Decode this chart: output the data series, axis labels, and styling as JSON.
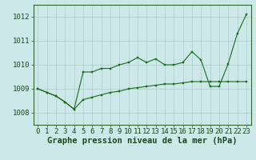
{
  "x": [
    0,
    1,
    2,
    3,
    4,
    5,
    6,
    7,
    8,
    9,
    10,
    11,
    12,
    13,
    14,
    15,
    16,
    17,
    18,
    19,
    20,
    21,
    22,
    23
  ],
  "line1": [
    1009.0,
    1008.85,
    1008.7,
    1008.45,
    1008.15,
    1009.7,
    1009.7,
    1009.85,
    1009.85,
    1010.0,
    1010.1,
    1010.3,
    1010.1,
    1010.25,
    1010.0,
    1010.0,
    1010.1,
    1010.55,
    1010.2,
    1009.1,
    1009.1,
    1010.05,
    1011.3,
    1012.1
  ],
  "line2": [
    1009.0,
    1008.85,
    1008.7,
    1008.45,
    1008.15,
    1008.55,
    1008.65,
    1008.75,
    1008.85,
    1008.9,
    1009.0,
    1009.05,
    1009.1,
    1009.15,
    1009.2,
    1009.2,
    1009.25,
    1009.3,
    1009.3,
    1009.3,
    1009.3,
    1009.3,
    1009.3,
    1009.3
  ],
  "ylim": [
    1007.5,
    1012.5
  ],
  "yticks": [
    1008,
    1009,
    1010,
    1011,
    1012
  ],
  "xticks": [
    0,
    1,
    2,
    3,
    4,
    5,
    6,
    7,
    8,
    9,
    10,
    11,
    12,
    13,
    14,
    15,
    16,
    17,
    18,
    19,
    20,
    21,
    22,
    23
  ],
  "line_color": "#1a6b1a",
  "bg_color": "#cce8e8",
  "grid_color": "#aacccc",
  "xlabel": "Graphe pression niveau de la mer (hPa)",
  "xlabel_fontsize": 7.5,
  "tick_fontsize": 6.5
}
